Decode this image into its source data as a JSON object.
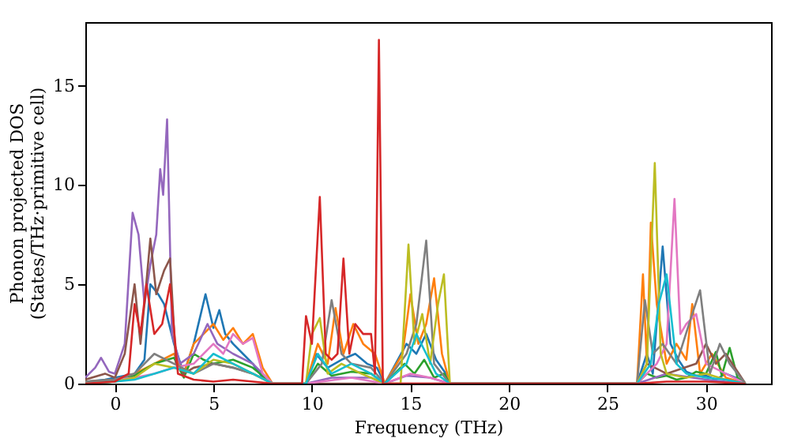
{
  "chart_data": {
    "type": "line",
    "xlabel": "Frequency (THz)",
    "ylabel": "Phonon projected DOS\n(States/THz·primitive cell)",
    "xlim": [
      -1.5,
      33.3
    ],
    "ylim": [
      0,
      18.2
    ],
    "xticks": [
      0,
      5,
      10,
      15,
      20,
      25,
      30
    ],
    "yticks": [
      0,
      5,
      10,
      15
    ],
    "grid": false,
    "series": [
      {
        "color": "#1f77b4",
        "x": [
          -1.5,
          -0.5,
          0,
          1,
          1.5,
          1.8,
          2.2,
          2.5,
          3,
          3.5,
          4,
          4.6,
          5,
          5.3,
          5.6,
          6,
          6.5,
          7,
          7.5,
          8,
          9.7,
          10.2,
          10.8,
          11.5,
          12.2,
          12.8,
          13.3,
          13.7,
          14.8,
          15.3,
          15.8,
          16.3,
          16.8,
          17,
          26.5,
          27,
          27.3,
          27.8,
          28.2,
          28.6,
          29,
          29.5,
          30,
          30.5,
          31,
          31.5,
          32
        ],
        "values": [
          0.1,
          0.2,
          0.3,
          0.5,
          1.2,
          5.0,
          4.5,
          4.0,
          2.0,
          0.5,
          2.0,
          4.5,
          2.8,
          3.7,
          2.5,
          2.0,
          1.5,
          1.0,
          0.3,
          0,
          0,
          1.5,
          0.8,
          1.2,
          1.5,
          1.0,
          0.8,
          0,
          2.0,
          1.5,
          2.5,
          1.2,
          0.5,
          0,
          0,
          1.5,
          0.5,
          6.9,
          2.0,
          1.2,
          0.6,
          0.4,
          0.4,
          0.2,
          0.5,
          0.3,
          0
        ]
      },
      {
        "color": "#ff7f0e",
        "x": [
          -1.5,
          0,
          1,
          2,
          3,
          3.5,
          4,
          4.5,
          5,
          5.5,
          6,
          6.5,
          7,
          7.5,
          8,
          9.7,
          10.3,
          10.8,
          11.2,
          11.6,
          12.1,
          12.6,
          13.2,
          13.7,
          14.6,
          15,
          15.4,
          15.8,
          16.2,
          16.6,
          17,
          26.5,
          26.8,
          27.0,
          27.2,
          27.5,
          28,
          28.5,
          29,
          29.3,
          29.7,
          30.3,
          31,
          32
        ],
        "values": [
          0.1,
          0.2,
          0.5,
          1.0,
          1.5,
          0.5,
          2.0,
          2.5,
          3.0,
          2.2,
          2.8,
          2.0,
          2.5,
          0.8,
          0,
          0,
          2.0,
          1.0,
          3.8,
          1.5,
          3.0,
          2.0,
          1.5,
          0,
          1.5,
          4.5,
          2.0,
          3.0,
          5.3,
          1.5,
          0,
          0,
          5.5,
          1.0,
          8.1,
          4.0,
          1.0,
          2.0,
          1.2,
          4.0,
          0.5,
          1.5,
          0.3,
          0
        ]
      },
      {
        "color": "#2ca02c",
        "x": [
          -1.5,
          0,
          1,
          2,
          3,
          3.5,
          4,
          4.5,
          5,
          6,
          7,
          8,
          9.7,
          10.3,
          11,
          12,
          13,
          13.7,
          14.7,
          15.2,
          15.7,
          16.2,
          16.7,
          17,
          26.5,
          27,
          27.5,
          28,
          28.5,
          29,
          29.5,
          30,
          30.5,
          30.8,
          31.2,
          31.6,
          32
        ],
        "values": [
          0,
          0.1,
          0.4,
          1.0,
          1.3,
          0.3,
          1.5,
          1.2,
          1.0,
          1.2,
          0.8,
          0,
          0,
          1.0,
          0.4,
          0.6,
          0.5,
          0,
          1.0,
          0.5,
          1.2,
          0.3,
          0.5,
          0,
          0,
          0.5,
          0.3,
          0.4,
          0.2,
          0.3,
          0.6,
          0.5,
          1.6,
          0.4,
          1.8,
          0.3,
          0
        ]
      },
      {
        "color": "#9467bd",
        "x": [
          -1.5,
          -1.0,
          -0.7,
          -0.3,
          0,
          0.5,
          0.9,
          1.2,
          1.5,
          1.8,
          2.1,
          2.3,
          2.45,
          2.65,
          2.9,
          3.3,
          4,
          4.7,
          5.2,
          6,
          7,
          8,
          9.7,
          11,
          13,
          13.7,
          14.8,
          16,
          17,
          26.5,
          28,
          30,
          32
        ],
        "values": [
          0.3,
          0.8,
          1.3,
          0.6,
          0.5,
          2.0,
          8.6,
          7.5,
          4.0,
          6.0,
          7.5,
          10.8,
          9.5,
          13.3,
          2.5,
          1.0,
          1.5,
          3.0,
          2.0,
          1.5,
          1.0,
          0,
          0,
          0.3,
          0.3,
          0,
          0.4,
          0.3,
          0,
          0,
          0.5,
          0.2,
          0
        ]
      },
      {
        "color": "#8c564b",
        "x": [
          -1.5,
          -0.5,
          0,
          0.5,
          1.0,
          1.3,
          1.5,
          1.8,
          2.1,
          2.5,
          2.8,
          3.1,
          3.5,
          4,
          5,
          6,
          7,
          8,
          9.7,
          13.7,
          17,
          26.5,
          27,
          28,
          29.5,
          30,
          30.5,
          31,
          32
        ],
        "values": [
          0.2,
          0.5,
          0.3,
          1.5,
          5.0,
          2.0,
          4.0,
          7.3,
          4.5,
          5.7,
          6.3,
          1.0,
          0.5,
          0.8,
          1.0,
          0.8,
          0.5,
          0,
          0,
          0,
          0,
          0,
          1.0,
          0.5,
          1.0,
          2.0,
          1.0,
          1.5,
          0
        ]
      },
      {
        "color": "#e377c2",
        "x": [
          -1.5,
          0,
          1,
          2,
          3,
          4,
          5,
          5.5,
          6,
          6.5,
          7,
          7.5,
          8,
          9.7,
          12,
          13.7,
          15,
          16,
          17,
          26.5,
          27,
          27.5,
          28,
          28.4,
          28.7,
          29,
          29.5,
          30,
          31,
          32
        ],
        "values": [
          0,
          0.2,
          0.3,
          0.5,
          0.8,
          1.0,
          2.0,
          1.5,
          2.5,
          2.0,
          2.3,
          0.5,
          0,
          0,
          0.3,
          0,
          0.5,
          0.3,
          0,
          0,
          0.5,
          1.0,
          2.0,
          9.3,
          2.5,
          3.0,
          3.5,
          1.0,
          0.5,
          0
        ]
      },
      {
        "color": "#7f7f7f",
        "x": [
          -1.5,
          0,
          1,
          2,
          3,
          4,
          5,
          6,
          7,
          8,
          9.7,
          10.5,
          11.0,
          11.5,
          12,
          13,
          13.7,
          14.8,
          15.3,
          15.8,
          16.2,
          17,
          26.5,
          26.9,
          27.3,
          27.8,
          28.5,
          29.3,
          29.7,
          30.2,
          30.7,
          31.2,
          32
        ],
        "values": [
          0.1,
          0.2,
          0.5,
          1.5,
          1.0,
          0.5,
          1.0,
          0.8,
          0.5,
          0,
          0,
          1.0,
          4.2,
          1.5,
          1.0,
          0.8,
          0,
          1.5,
          3.0,
          7.2,
          1.0,
          0,
          0,
          4.2,
          1.5,
          2.0,
          1.0,
          3.5,
          4.7,
          0.5,
          2.0,
          1.0,
          0
        ]
      },
      {
        "color": "#bcbd22",
        "x": [
          -1.5,
          0,
          1,
          2,
          3,
          4,
          5,
          6,
          7,
          8,
          9.7,
          10.0,
          10.4,
          10.8,
          11.5,
          12.5,
          13.7,
          14.5,
          14.9,
          15.2,
          15.6,
          16.0,
          16.4,
          16.7,
          17,
          26.5,
          27.0,
          27.4,
          27.7,
          28,
          29,
          30,
          31,
          32
        ],
        "values": [
          0,
          0.1,
          0.3,
          1.0,
          0.8,
          0.5,
          1.2,
          1.0,
          0.5,
          0,
          0,
          2.5,
          3.3,
          0.5,
          1.0,
          0.5,
          0,
          0,
          7.0,
          2.0,
          3.5,
          1.0,
          4.0,
          5.5,
          0,
          0,
          1.0,
          11.1,
          1.5,
          0.5,
          0.3,
          0.5,
          0.2,
          0
        ]
      },
      {
        "color": "#17becf",
        "x": [
          -1.5,
          0,
          1,
          2,
          3,
          4,
          5,
          6,
          7,
          8,
          9.7,
          10.3,
          11,
          12,
          13,
          13.7,
          14.8,
          15.3,
          15.8,
          16.3,
          17,
          26.5,
          27.2,
          27.6,
          28.0,
          28.5,
          29,
          30,
          31,
          32
        ],
        "values": [
          0,
          0.1,
          0.2,
          0.5,
          0.8,
          0.5,
          1.5,
          1.0,
          0.5,
          0,
          0,
          1.5,
          0.5,
          1.0,
          0.5,
          0,
          1.0,
          2.5,
          1.5,
          0.5,
          0,
          0,
          1.0,
          4.0,
          5.5,
          1.0,
          0.5,
          0.3,
          0.2,
          0
        ]
      },
      {
        "color": "#d62728",
        "x": [
          -1.5,
          0,
          0.7,
          1.0,
          1.3,
          1.6,
          2.0,
          2.4,
          2.8,
          3.2,
          4,
          5,
          6,
          7,
          8,
          9.5,
          9.7,
          10.0,
          10.4,
          10.7,
          11.0,
          11.3,
          11.6,
          11.9,
          12.2,
          12.6,
          13.0,
          13.2,
          13.4,
          13.6,
          14,
          17,
          26.5,
          28,
          30,
          32
        ],
        "values": [
          0,
          0.1,
          0.5,
          4.0,
          2.5,
          5.0,
          2.5,
          3.0,
          5.0,
          0.5,
          0.2,
          0.1,
          0.2,
          0.1,
          0,
          0,
          3.4,
          2.0,
          9.4,
          1.5,
          1.2,
          1.5,
          6.3,
          1.5,
          3.0,
          2.5,
          2.5,
          0.5,
          17.3,
          0,
          0,
          0,
          0,
          0.1,
          0.1,
          0
        ]
      }
    ]
  }
}
